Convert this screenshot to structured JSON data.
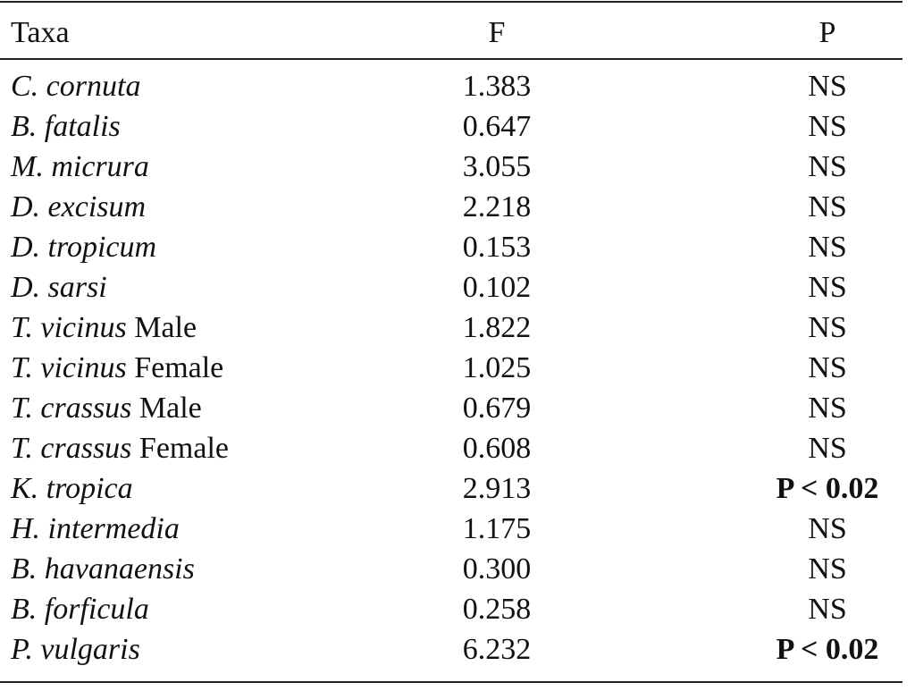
{
  "table": {
    "header": [
      "Taxa",
      "F",
      "P"
    ],
    "rows": [
      {
        "taxon": "C. cornuta",
        "F": "1.383",
        "P": "NS"
      },
      {
        "taxon": "B. fatalis",
        "F": "0.647",
        "P": "NS"
      },
      {
        "taxon": "M. micrura",
        "F": "3.055",
        "P": "NS"
      },
      {
        "taxon": "D. excisum",
        "F": "2.218",
        "P": "NS"
      },
      {
        "taxon": "D. tropicum",
        "F": "0.153",
        "P": "NS"
      },
      {
        "taxon": "D. sarsi",
        "F": "0.102",
        "P": "NS"
      },
      {
        "taxon": "T. vicinus",
        "sex": "Male",
        "F": "1.822",
        "P": "NS"
      },
      {
        "taxon": "T. vicinus",
        "sex": "Female",
        "F": "1.025",
        "P": "NS"
      },
      {
        "taxon": "T. crassus",
        "sex": "Male",
        "F": "0.679",
        "P": "NS"
      },
      {
        "taxon": "T. crassus",
        "sex": "Female",
        "F": "0.608",
        "P": "NS"
      },
      {
        "taxon": "K. tropica",
        "F": "2.913",
        "P": "P < 0.02",
        "bold": true
      },
      {
        "taxon": "H. intermedia",
        "F": "1.175",
        "P": "NS"
      },
      {
        "taxon": "B. havanaensis",
        "F": "0.300",
        "P": "NS"
      },
      {
        "taxon": "B. forficula",
        "F": "0.258",
        "P": "NS"
      },
      {
        "taxon": "P. vulgaris",
        "F": "6.232",
        "P": "P < 0.02",
        "bold": true
      }
    ]
  }
}
